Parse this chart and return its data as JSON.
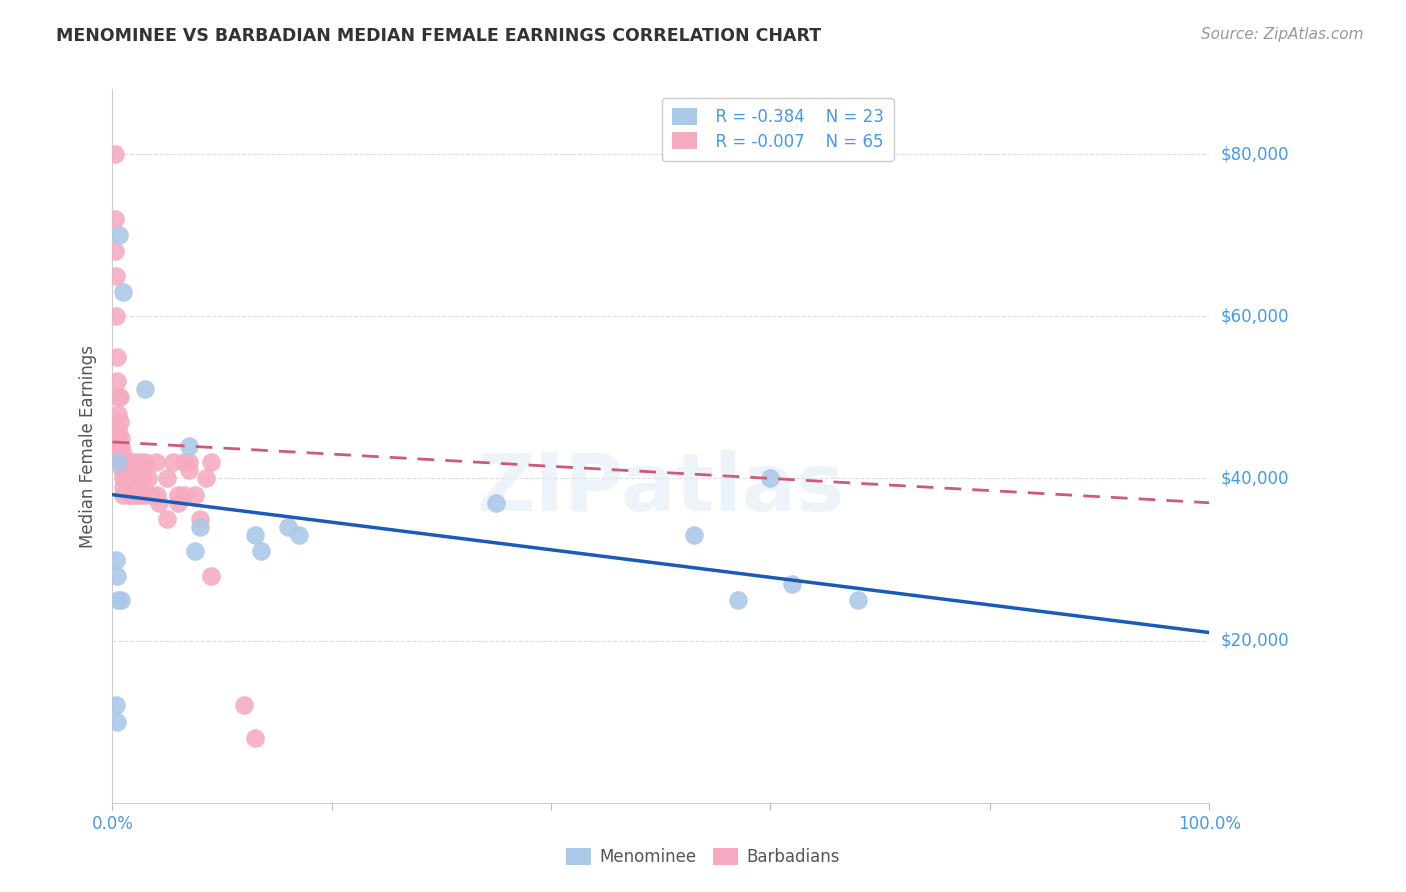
{
  "title": "MENOMINEE VS BARBADIAN MEDIAN FEMALE EARNINGS CORRELATION CHART",
  "source": "Source: ZipAtlas.com",
  "ylabel": "Median Female Earnings",
  "y_tick_values": [
    20000,
    40000,
    60000,
    80000
  ],
  "y_right_labels": [
    "$20,000",
    "$40,000",
    "$60,000",
    "$80,000"
  ],
  "legend_r_blue": "R = -0.384",
  "legend_n_blue": "N = 23",
  "legend_r_pink": "R = -0.007",
  "legend_n_pink": "N = 65",
  "blue_color": "#aac8e8",
  "pink_color": "#f5aac0",
  "trend_blue_color": "#1a5ab8",
  "trend_pink_color": "#d05878",
  "background_color": "#ffffff",
  "menominee_x": [
    0.6,
    1.0,
    0.8,
    3.0,
    0.5,
    7.0,
    8.0,
    7.5,
    13.0,
    13.5,
    17.0,
    16.0,
    35.0,
    53.0,
    57.0,
    62.0,
    68.0,
    0.5,
    0.4,
    0.3,
    0.4,
    0.3,
    60.0
  ],
  "menominee_y": [
    70000,
    63000,
    25000,
    51000,
    42000,
    44000,
    34000,
    31000,
    33000,
    31000,
    33000,
    34000,
    37000,
    33000,
    25000,
    27000,
    25000,
    25000,
    28000,
    12000,
    10000,
    30000,
    40000
  ],
  "barbadian_x": [
    0.2,
    0.2,
    0.2,
    0.3,
    0.3,
    0.4,
    0.4,
    0.5,
    0.5,
    0.5,
    0.5,
    0.6,
    0.6,
    0.6,
    0.7,
    0.7,
    0.8,
    0.8,
    0.8,
    0.9,
    0.9,
    1.0,
    1.0,
    1.0,
    1.0,
    1.0,
    1.0,
    1.2,
    1.2,
    1.3,
    1.5,
    1.5,
    1.6,
    1.7,
    1.8,
    2.0,
    2.1,
    2.2,
    2.5,
    2.5,
    2.7,
    2.8,
    3.0,
    3.0,
    3.2,
    3.5,
    4.0,
    4.1,
    4.2,
    5.0,
    5.0,
    5.5,
    6.0,
    6.0,
    6.5,
    6.5,
    7.0,
    7.0,
    7.5,
    8.0,
    8.5,
    9.0,
    9.0,
    12.0,
    13.0
  ],
  "barbadian_y": [
    80000,
    72000,
    68000,
    65000,
    60000,
    55000,
    52000,
    50000,
    48000,
    46000,
    45000,
    44000,
    43000,
    42000,
    50000,
    47000,
    45000,
    44000,
    43000,
    42000,
    41000,
    43000,
    42000,
    41000,
    40000,
    39000,
    38000,
    42000,
    41000,
    40000,
    42000,
    38000,
    42000,
    41000,
    38000,
    42000,
    40000,
    38000,
    42000,
    38000,
    40000,
    41000,
    38000,
    42000,
    40000,
    38000,
    42000,
    38000,
    37000,
    40000,
    35000,
    42000,
    38000,
    37000,
    42000,
    38000,
    42000,
    41000,
    38000,
    35000,
    40000,
    42000,
    28000,
    12000,
    8000
  ],
  "blue_trend_x0": 0,
  "blue_trend_y0": 38000,
  "blue_trend_x1": 100,
  "blue_trend_y1": 21000,
  "pink_trend_x0": 0,
  "pink_trend_y0": 44500,
  "pink_trend_x1": 100,
  "pink_trend_y1": 37000,
  "xlim": [
    0,
    100
  ],
  "ylim": [
    0,
    88000
  ],
  "label_color": "#4499ee",
  "title_color": "#333333",
  "source_color": "#999999",
  "grid_color": "#dddddd",
  "ylabel_color": "#555555"
}
